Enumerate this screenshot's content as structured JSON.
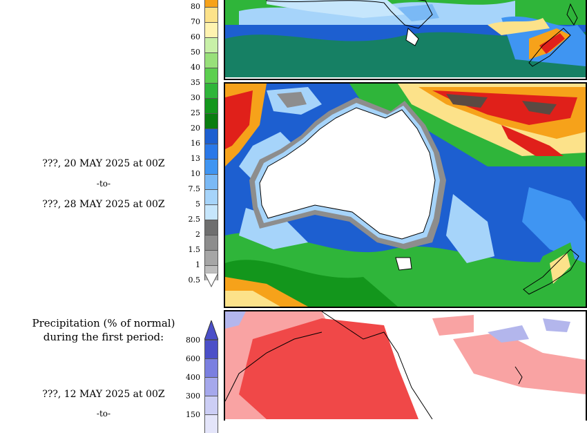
{
  "upper_colorbar": {
    "labels": [
      "80",
      "70",
      "60",
      "50",
      "40",
      "35",
      "30",
      "25",
      "20",
      "16",
      "13",
      "10",
      "7.5",
      "5",
      "2.5",
      "2",
      "1.5",
      "1",
      "0.5"
    ],
    "colors": [
      "#f6a21a",
      "#fce28a",
      "#fff3b0",
      "#c8f0a8",
      "#98e07a",
      "#5ccf4f",
      "#2fb53a",
      "#13961c",
      "#0a7d10",
      "#1d5fd0",
      "#2a78e8",
      "#3f95f2",
      "#7ab9f5",
      "#a6d4fa",
      "#c6e6fc",
      "#6f6f6f",
      "#8d8d8d",
      "#a6a6a6",
      "#bdbdbd"
    ]
  },
  "middle_period": {
    "start": "???, 20 MAY 2025 at 00Z",
    "separator": "-to-",
    "end": "???, 28 MAY 2025 at 00Z"
  },
  "lower_title": {
    "line1": "Precipitation (% of normal)",
    "line2": "during the first period:"
  },
  "lower_colorbar": {
    "labels": [
      "800",
      "600",
      "400",
      "300",
      "150"
    ],
    "colors": [
      "#4b4fc8",
      "#7a7fe0",
      "#a5a8ec",
      "#cccef5",
      "#e4e5fa"
    ]
  },
  "lower_period": {
    "start": "???, 12 MAY 2025 at 00Z",
    "separator": "-to-"
  },
  "map_colors": {
    "land": "#ffffff",
    "ocean_blue": "#1d5fd0",
    "green": "#2fb53a",
    "light_blue": "#a6d4fa",
    "red": "#e0201a",
    "orange": "#f6a21a",
    "yellow": "#fce28a",
    "grey": "#8d8d8d",
    "dark": "#5a4a42",
    "anomaly_red": "#f04848",
    "anomaly_pink": "#f9a3a3",
    "anomaly_blue": "#b3b6ec"
  }
}
